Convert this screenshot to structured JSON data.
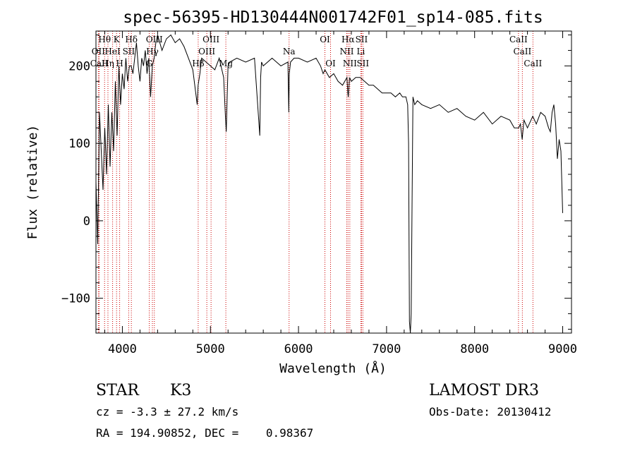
{
  "chart_data": {
    "type": "line",
    "title": "spec-56395-HD130444N001742F01_sp14-085.fits",
    "xlabel": "Wavelength (Å)",
    "ylabel": "Flux (relative)",
    "xlim": [
      3700,
      9100
    ],
    "ylim": [
      -145,
      245
    ],
    "xticks": [
      4000,
      5000,
      6000,
      7000,
      8000,
      9000
    ],
    "yticks": [
      -100,
      0,
      100,
      200
    ],
    "grid": false,
    "legend": "none",
    "series": [
      {
        "color": "#000000",
        "x": [
          3700,
          3720,
          3740,
          3760,
          3780,
          3800,
          3820,
          3840,
          3860,
          3880,
          3900,
          3920,
          3940,
          3960,
          3980,
          4000,
          4020,
          4040,
          4060,
          4080,
          4100,
          4120,
          4140,
          4160,
          4180,
          4200,
          4220,
          4240,
          4260,
          4280,
          4300,
          4320,
          4340,
          4360,
          4380,
          4400,
          4450,
          4500,
          4550,
          4600,
          4650,
          4700,
          4750,
          4800,
          4850,
          4860,
          4880,
          4900,
          4950,
          5000,
          5050,
          5100,
          5150,
          5170,
          5180,
          5190,
          5200,
          5220,
          5300,
          5400,
          5500,
          5560,
          5570,
          5580,
          5600,
          5700,
          5800,
          5880,
          5890,
          5895,
          5910,
          5950,
          6000,
          6100,
          6200,
          6250,
          6280,
          6300,
          6350,
          6400,
          6450,
          6500,
          6550,
          6560,
          6565,
          6580,
          6600,
          6650,
          6700,
          6750,
          6800,
          6850,
          6900,
          6950,
          7000,
          7050,
          7100,
          7150,
          7180,
          7200,
          7220,
          7240,
          7250,
          7260,
          7270,
          7280,
          7290,
          7300,
          7320,
          7350,
          7400,
          7500,
          7600,
          7700,
          7800,
          7900,
          8000,
          8100,
          8200,
          8300,
          8400,
          8450,
          8500,
          8520,
          8540,
          8560,
          8600,
          8660,
          8700,
          8750,
          8800,
          8840,
          8860,
          8880,
          8900,
          8920,
          8940,
          8960,
          8980,
          9000
        ],
        "y": [
          50,
          -30,
          140,
          90,
          40,
          120,
          60,
          150,
          70,
          140,
          90,
          180,
          110,
          200,
          150,
          190,
          170,
          210,
          180,
          200,
          200,
          190,
          210,
          230,
          200,
          180,
          210,
          200,
          220,
          190,
          210,
          160,
          200,
          210,
          230,
          240,
          220,
          235,
          240,
          230,
          235,
          225,
          210,
          195,
          150,
          175,
          190,
          210,
          205,
          200,
          195,
          210,
          185,
          135,
          115,
          160,
          200,
          205,
          210,
          205,
          210,
          110,
          185,
          205,
          200,
          210,
          200,
          205,
          140,
          190,
          205,
          210,
          210,
          205,
          210,
          200,
          190,
          195,
          185,
          190,
          180,
          175,
          185,
          165,
          160,
          185,
          180,
          185,
          185,
          180,
          175,
          175,
          170,
          165,
          165,
          165,
          160,
          165,
          160,
          160,
          160,
          150,
          100,
          -130,
          -145,
          -120,
          30,
          160,
          150,
          155,
          150,
          145,
          150,
          140,
          145,
          135,
          130,
          140,
          125,
          135,
          130,
          120,
          120,
          125,
          105,
          130,
          120,
          135,
          125,
          140,
          135,
          120,
          115,
          140,
          150,
          125,
          80,
          105,
          90,
          10
        ]
      }
    ],
    "annotations": [
      {
        "name": "Hθ",
        "x": 3798,
        "row": 0
      },
      {
        "name": "OII",
        "x": 3727,
        "row": 1
      },
      {
        "name": "CaII",
        "x": 3737,
        "row": 2
      },
      {
        "name": "Hη",
        "x": 3836,
        "row": 2
      },
      {
        "name": "HeI",
        "x": 3889,
        "row": 1
      },
      {
        "name": "K",
        "x": 3934,
        "row": 0
      },
      {
        "name": "H",
        "x": 3969,
        "row": 2
      },
      {
        "name": "SII",
        "x": 4072,
        "row": 1
      },
      {
        "name": "Hδ",
        "x": 4102,
        "row": 0
      },
      {
        "name": "OIII",
        "x": 4363,
        "row": 0
      },
      {
        "name": "Hγ",
        "x": 4341,
        "row": 1
      },
      {
        "name": "G",
        "x": 4305,
        "row": 2
      },
      {
        "name": "Hβ",
        "x": 4861,
        "row": 2
      },
      {
        "name": "OIII",
        "x": 4959,
        "row": 1
      },
      {
        "name": "OIII",
        "x": 5007,
        "row": 0
      },
      {
        "name": "Mg",
        "x": 5175,
        "row": 2
      },
      {
        "name": "Na",
        "x": 5893,
        "row": 1
      },
      {
        "name": "OI",
        "x": 6300,
        "row": 0
      },
      {
        "name": "OI",
        "x": 6364,
        "row": 2
      },
      {
        "name": "Hα",
        "x": 6563,
        "row": 0
      },
      {
        "name": "NII",
        "x": 6548,
        "row": 1
      },
      {
        "name": "NII",
        "x": 6583,
        "row": 2
      },
      {
        "name": "SII",
        "x": 6716,
        "row": 0
      },
      {
        "name": "Li",
        "x": 6708,
        "row": 1
      },
      {
        "name": "SII",
        "x": 6731,
        "row": 2
      },
      {
        "name": "CaII",
        "x": 8498,
        "row": 0
      },
      {
        "name": "CaII",
        "x": 8542,
        "row": 1
      },
      {
        "name": "CaII",
        "x": 8662,
        "row": 2
      }
    ]
  },
  "info": {
    "class_label": "STAR",
    "subclass": "K3",
    "survey": "LAMOST DR3",
    "redshift": "cz = -3.3 ± 27.2 km/s",
    "obs_date": "Obs-Date: 20130412",
    "coords": "RA = 194.90852, DEC =    0.98367"
  },
  "colors": {
    "line": "#000000",
    "marker_line": "#cc0000"
  }
}
